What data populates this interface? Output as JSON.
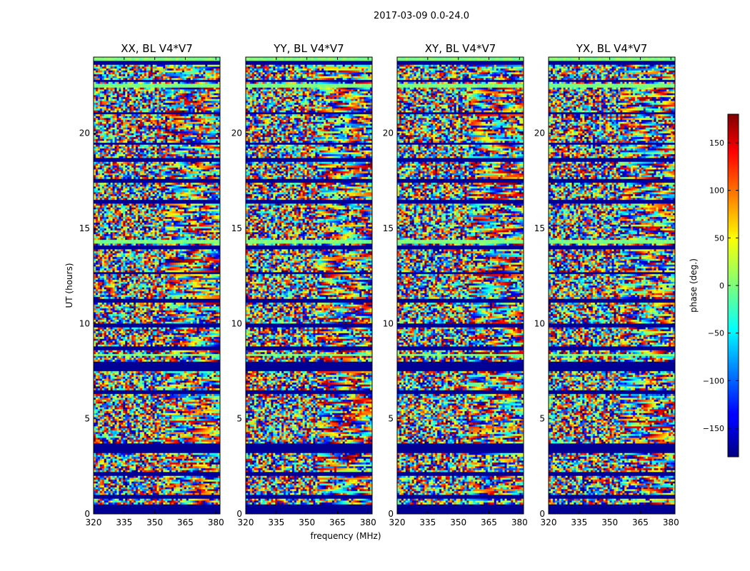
{
  "chart_data": {
    "type": "heatmap",
    "suptitle": "2017-03-09 0.0-24.0",
    "xlabel": "frequency (MHz)",
    "ylabel": "UT (hours)",
    "xlim": [
      320,
      382
    ],
    "ylim": [
      0,
      24
    ],
    "xticks": [
      320,
      335,
      350,
      365,
      380
    ],
    "yticks": [
      0,
      5,
      10,
      15,
      20
    ],
    "panels": [
      {
        "title": "XX, BL V4*V7",
        "polarization": "XX"
      },
      {
        "title": "YY, BL V4*V7",
        "polarization": "YY"
      },
      {
        "title": "XY, BL V4*V7",
        "polarization": "XY"
      },
      {
        "title": "YX, BL V4*V7",
        "polarization": "YX"
      }
    ],
    "colorbar": {
      "label": "phase (deg.)",
      "colormap": "jet",
      "vmin": -180,
      "vmax": 180,
      "ticks": [
        -150,
        -100,
        -50,
        0,
        50,
        100,
        150
      ],
      "tick_labels": [
        "−150",
        "−100",
        "−50",
        "0",
        "50",
        "100",
        "150"
      ]
    },
    "flagged_ut_bands_hours": [
      [
        0.0,
        0.5
      ],
      [
        0.85,
        1.05
      ],
      [
        2.05,
        2.2
      ],
      [
        3.2,
        3.7
      ],
      [
        6.3,
        6.45
      ],
      [
        7.45,
        7.95
      ],
      [
        8.6,
        8.8
      ],
      [
        9.8,
        10.05
      ],
      [
        11.1,
        11.3
      ],
      [
        12.6,
        12.75
      ],
      [
        13.9,
        14.1
      ],
      [
        16.35,
        16.5
      ],
      [
        17.4,
        17.6
      ],
      [
        18.5,
        18.75
      ],
      [
        19.4,
        19.5
      ],
      [
        21.0,
        21.15
      ],
      [
        22.7,
        22.85
      ],
      [
        23.6,
        23.8
      ]
    ],
    "clean_ut_bands_hours": [
      [
        23.8,
        24.0
      ],
      [
        22.45,
        22.6
      ],
      [
        14.2,
        14.4
      ],
      [
        8.3,
        8.45
      ]
    ]
  }
}
